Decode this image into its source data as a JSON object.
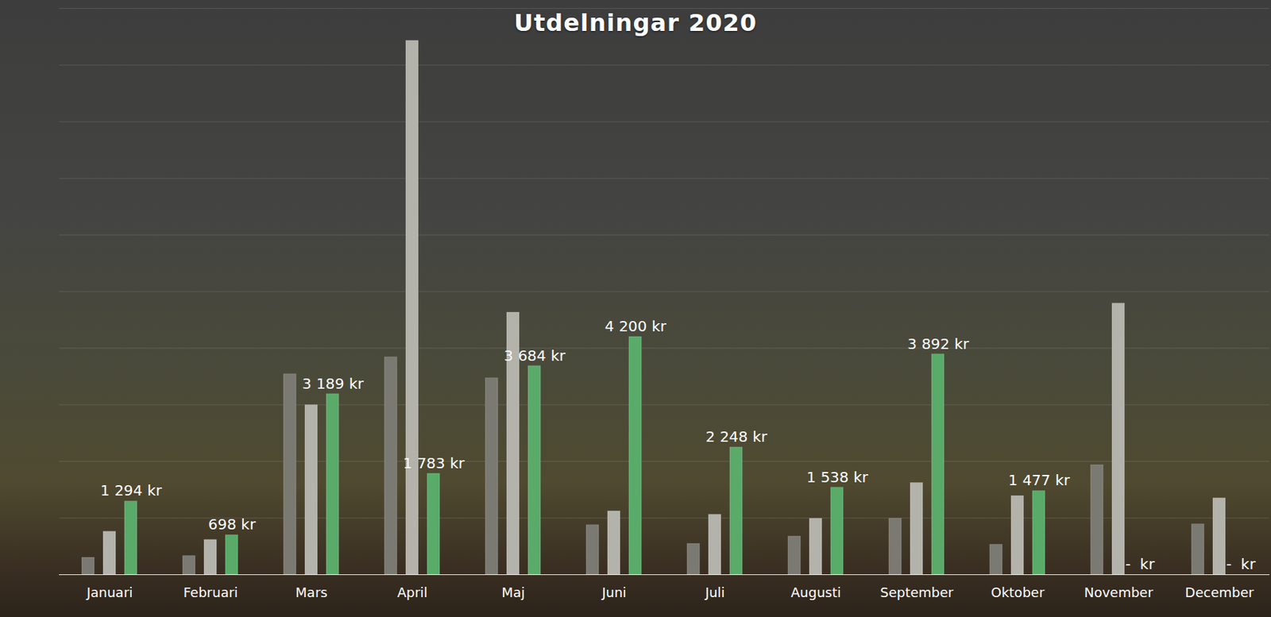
{
  "chart_data": {
    "type": "bar",
    "title": "Utdelningar 2020",
    "categories": [
      "Januari",
      "Februari",
      "Mars",
      "April",
      "Maj",
      "Juni",
      "Juli",
      "Augusti",
      "September",
      "Oktober",
      "November",
      "December"
    ],
    "series": [
      {
        "color": "#7a7a72",
        "values": [
          300,
          330,
          3540,
          3840,
          3470,
          875,
          545,
          675,
          990,
          530,
          1935,
          890
        ]
      },
      {
        "color": "#b3b3ab",
        "values": [
          760,
          615,
          2995,
          9430,
          4630,
          1120,
          1060,
          990,
          1620,
          1390,
          4790,
          1350
        ]
      },
      {
        "color": "#5aab6a",
        "values": [
          1294,
          698,
          3189,
          1783,
          3684,
          4200,
          2248,
          1538,
          3892,
          1477,
          0,
          0
        ],
        "data_labels": true,
        "value_labels": [
          "1 294 kr",
          "698 kr",
          "3 189 kr",
          "1 783 kr",
          "3 684 kr",
          "4 200 kr",
          "2 248 kr",
          "1 538 kr",
          "3 892 kr",
          "1 477 kr",
          "-  kr",
          "-  kr"
        ]
      }
    ],
    "ylim": [
      0,
      10000
    ],
    "yticks": [
      0,
      1000,
      2000,
      3000,
      4000,
      5000,
      6000,
      7000,
      8000,
      9000,
      10000
    ],
    "grid": true,
    "tick_labels": "x"
  }
}
